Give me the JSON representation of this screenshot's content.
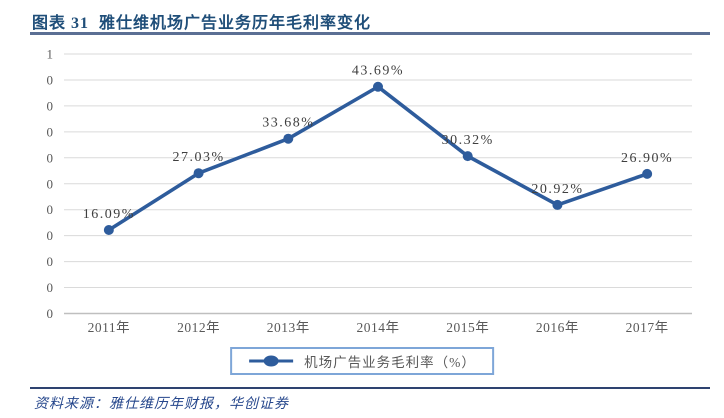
{
  "header": {
    "title": "图表 31  雅仕维机场广告业务历年毛利率变化"
  },
  "chart_data": {
    "type": "line",
    "title": "图表 31  雅仕维机场广告业务历年毛利率变化",
    "categories": [
      "2011年",
      "2012年",
      "2013年",
      "2014年",
      "2015年",
      "2016年",
      "2017年"
    ],
    "series": [
      {
        "name": "机场广告业务毛利率（%）",
        "values": [
          16.09,
          27.03,
          33.68,
          43.69,
          30.32,
          20.92,
          26.9
        ],
        "data_labels": [
          "16.09%",
          "27.03%",
          "33.68%",
          "43.69%",
          "30.32%",
          "20.92%",
          "26.90%"
        ]
      }
    ],
    "xlabel": "",
    "ylabel": "",
    "ylim": [
      0,
      50
    ],
    "y_axis": {
      "tick_labels_top_to_bottom": [
        "1",
        "0",
        "0",
        "0",
        "0",
        "0",
        "0",
        "0",
        "0",
        "0",
        "0"
      ],
      "grid": true
    },
    "legend": {
      "label": "机场广告业务毛利率（%）",
      "position": "bottom"
    },
    "colors": {
      "line": "#2E5C9C",
      "gridline": "#DADADA",
      "axis_line": "#BFBFBF",
      "tick_text": "#595959",
      "data_label_text": "#3F3F3F",
      "legend_border": "#7EA6D8"
    }
  },
  "footer": {
    "source": "资料来源：雅仕维历年财报，华创证券"
  },
  "theme": {
    "title_color": "#1F4E79",
    "title_rule_color": "#5B6F94",
    "footer_rule_color": "#2E4370",
    "source_color": "#26478C"
  }
}
